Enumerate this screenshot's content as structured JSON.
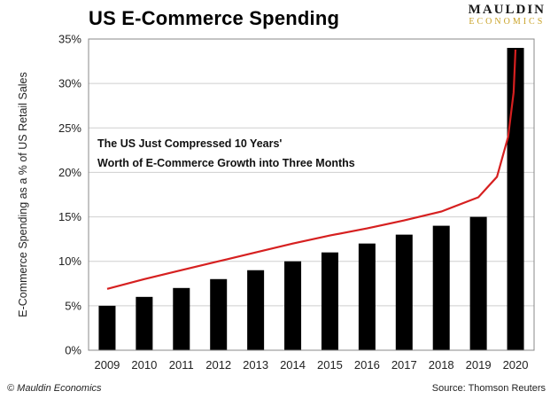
{
  "header": {
    "title": "US E-Commerce Spending",
    "logo_top": "MAULDIN",
    "logo_bottom": "ECONOMICS"
  },
  "footer": {
    "copyright": "© Mauldin Economics",
    "source": "Source: Thomson Reuters"
  },
  "colors": {
    "bar": "#000000",
    "trend": "#d62020",
    "grid": "#cfcfcf"
  },
  "chart_data": {
    "type": "bar",
    "title": "US E-Commerce Spending",
    "ylabel": "E-Commerce Spending as a % of US Retail Sales",
    "xlabel": "",
    "categories": [
      "2009",
      "2010",
      "2011",
      "2012",
      "2013",
      "2014",
      "2015",
      "2016",
      "2017",
      "2018",
      "2019",
      "2020"
    ],
    "values": [
      5,
      6,
      7,
      8,
      9,
      10,
      11,
      12,
      13,
      14,
      15,
      34
    ],
    "ylim": [
      0,
      35
    ],
    "yticks": [
      0,
      5,
      10,
      15,
      20,
      25,
      30,
      35
    ],
    "ytick_labels": [
      "0%",
      "5%",
      "10%",
      "15%",
      "20%",
      "25%",
      "30%",
      "35%"
    ],
    "grid": true,
    "trend_line": {
      "x": [
        2009,
        2010,
        2011,
        2012,
        2013,
        2014,
        2015,
        2016,
        2017,
        2018,
        2019,
        2019.5,
        2019.8,
        2019.95,
        2020
      ],
      "y": [
        6.9,
        8.0,
        9.0,
        10.0,
        11.0,
        12.0,
        12.9,
        13.7,
        14.6,
        15.6,
        17.2,
        19.5,
        24.0,
        29.0,
        33.8
      ]
    },
    "annotation": [
      "The US Just Compressed 10 Years'",
      "Worth of E-Commerce Growth into Three Months"
    ]
  }
}
